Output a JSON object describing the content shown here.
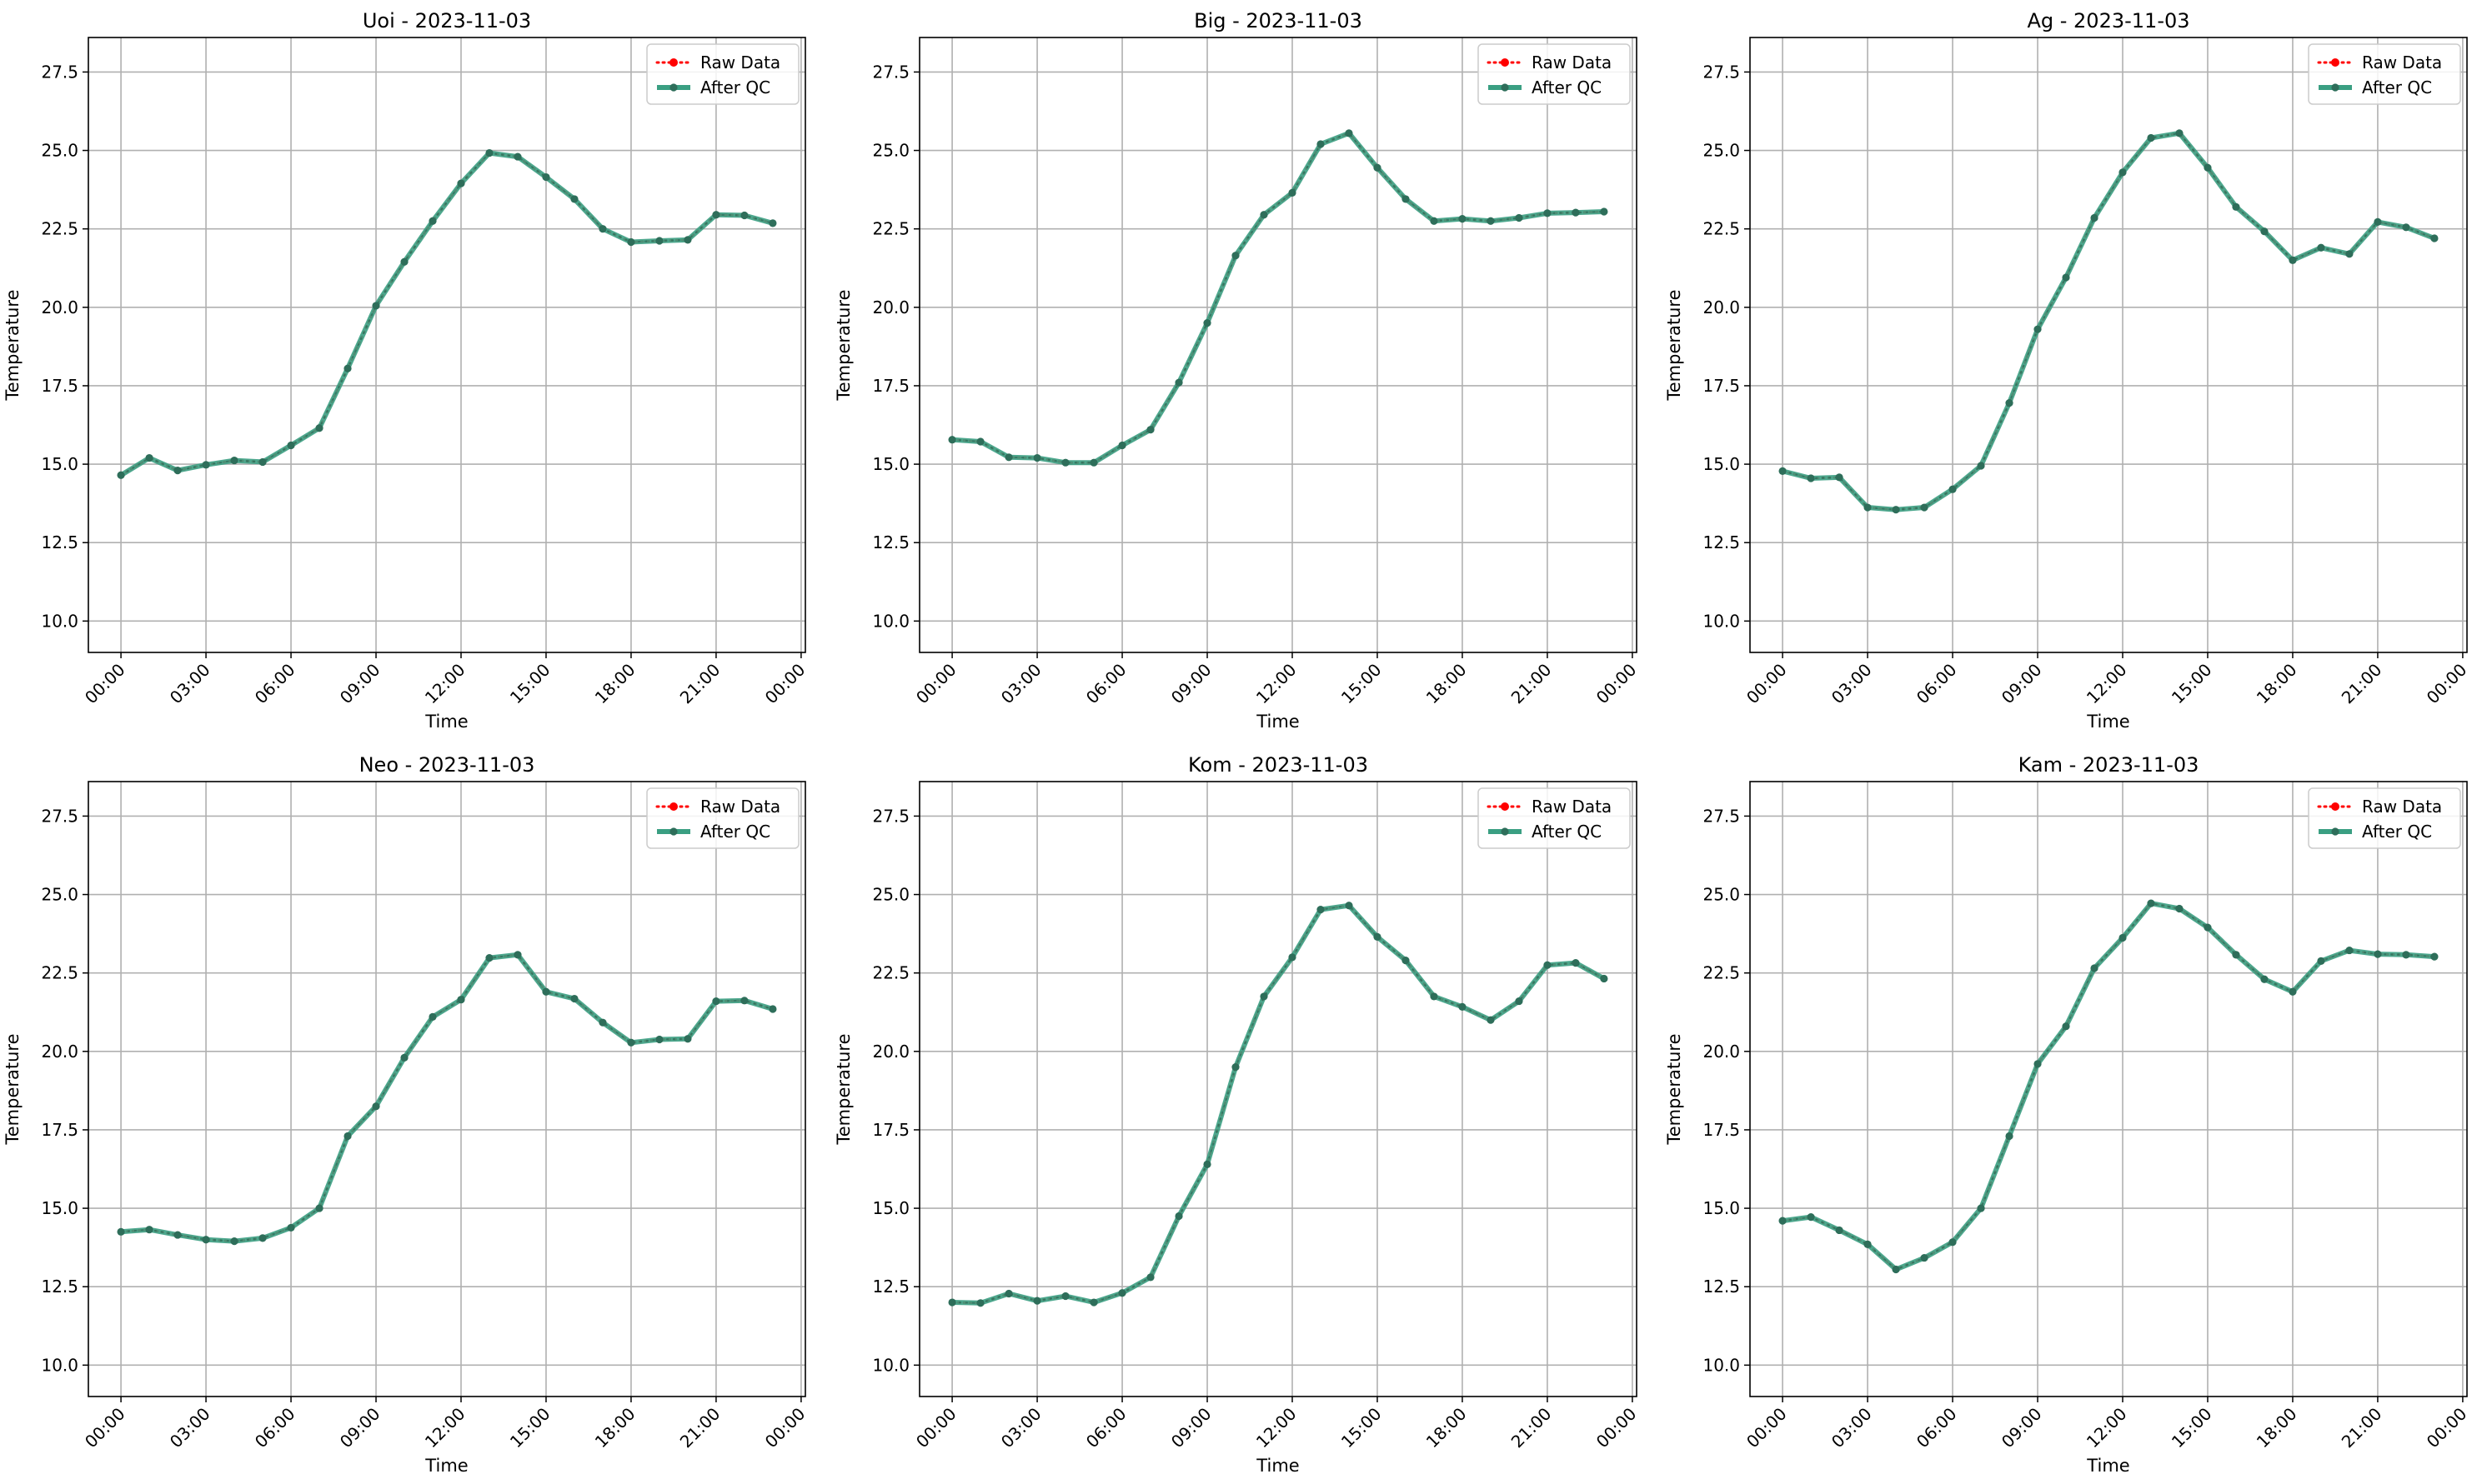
{
  "chart_data": [
    {
      "type": "line",
      "title": "Uoi - 2023-11-03",
      "xlabel": "Time",
      "ylabel": "Temperature",
      "ylim": [
        9.0,
        28.6
      ],
      "yticks": [
        "10.0",
        "12.5",
        "15.0",
        "17.5",
        "20.0",
        "22.5",
        "25.0",
        "27.5"
      ],
      "xticks": [
        "00:00",
        "03:00",
        "06:00",
        "09:00",
        "12:00",
        "15:00",
        "18:00",
        "21:00",
        "00:00"
      ],
      "grid": true,
      "legend_position": "top-right",
      "legend": [
        "Raw Data",
        "After QC"
      ],
      "x_hours": [
        0,
        1,
        2,
        3,
        4,
        5,
        6,
        7,
        8,
        9,
        10,
        11,
        12,
        13,
        14,
        15,
        16,
        17,
        18,
        19,
        20,
        21,
        22,
        23
      ],
      "series": [
        {
          "name": "Raw Data",
          "values": [
            14.65,
            15.2,
            14.8,
            14.98,
            15.12,
            15.07,
            15.6,
            16.15,
            18.05,
            20.05,
            21.45,
            22.75,
            23.95,
            24.92,
            24.8,
            24.15,
            23.45,
            22.5,
            22.08,
            22.12,
            22.15,
            22.95,
            22.93,
            22.68
          ]
        },
        {
          "name": "After QC",
          "values": [
            14.65,
            15.2,
            14.8,
            14.98,
            15.12,
            15.07,
            15.6,
            16.15,
            18.05,
            20.05,
            21.45,
            22.75,
            23.95,
            24.92,
            24.8,
            24.15,
            23.45,
            22.5,
            22.08,
            22.12,
            22.15,
            22.95,
            22.93,
            22.68
          ]
        }
      ]
    },
    {
      "type": "line",
      "title": "Big - 2023-11-03",
      "xlabel": "Time",
      "ylabel": "Temperature",
      "ylim": [
        9.0,
        28.6
      ],
      "yticks": [
        "10.0",
        "12.5",
        "15.0",
        "17.5",
        "20.0",
        "22.5",
        "25.0",
        "27.5"
      ],
      "xticks": [
        "00:00",
        "03:00",
        "06:00",
        "09:00",
        "12:00",
        "15:00",
        "18:00",
        "21:00",
        "00:00"
      ],
      "grid": true,
      "legend_position": "top-right",
      "legend": [
        "Raw Data",
        "After QC"
      ],
      "x_hours": [
        0,
        1,
        2,
        3,
        4,
        5,
        6,
        7,
        8,
        9,
        10,
        11,
        12,
        13,
        14,
        15,
        16,
        17,
        18,
        19,
        20,
        21,
        22,
        23
      ],
      "series": [
        {
          "name": "Raw Data",
          "values": [
            15.78,
            15.72,
            15.22,
            15.2,
            15.05,
            15.05,
            15.6,
            16.1,
            17.6,
            19.5,
            21.65,
            22.95,
            23.65,
            25.2,
            25.55,
            24.45,
            23.45,
            22.75,
            22.82,
            22.75,
            22.85,
            23.0,
            23.02,
            23.05
          ]
        },
        {
          "name": "After QC",
          "values": [
            15.78,
            15.72,
            15.22,
            15.2,
            15.05,
            15.05,
            15.6,
            16.1,
            17.6,
            19.5,
            21.65,
            22.95,
            23.65,
            25.2,
            25.55,
            24.45,
            23.45,
            22.75,
            22.82,
            22.75,
            22.85,
            23.0,
            23.02,
            23.05
          ]
        }
      ]
    },
    {
      "type": "line",
      "title": "Ag - 2023-11-03",
      "xlabel": "Time",
      "ylabel": "Temperature",
      "ylim": [
        9.0,
        28.6
      ],
      "yticks": [
        "10.0",
        "12.5",
        "15.0",
        "17.5",
        "20.0",
        "22.5",
        "25.0",
        "27.5"
      ],
      "xticks": [
        "00:00",
        "03:00",
        "06:00",
        "09:00",
        "12:00",
        "15:00",
        "18:00",
        "21:00",
        "00:00"
      ],
      "grid": true,
      "legend_position": "top-right",
      "legend": [
        "Raw Data",
        "After QC"
      ],
      "x_hours": [
        0,
        1,
        2,
        3,
        4,
        5,
        6,
        7,
        8,
        9,
        10,
        11,
        12,
        13,
        14,
        15,
        16,
        17,
        18,
        19,
        20,
        21,
        22,
        23
      ],
      "series": [
        {
          "name": "Raw Data",
          "values": [
            14.78,
            14.55,
            14.58,
            13.62,
            13.55,
            13.62,
            14.2,
            14.95,
            16.95,
            19.3,
            20.95,
            22.85,
            24.3,
            25.4,
            25.55,
            24.45,
            23.2,
            22.42,
            21.5,
            21.9,
            21.7,
            22.72,
            22.55,
            22.2
          ]
        },
        {
          "name": "After QC",
          "values": [
            14.78,
            14.55,
            14.58,
            13.62,
            13.55,
            13.62,
            14.2,
            14.95,
            16.95,
            19.3,
            20.95,
            22.85,
            24.3,
            25.4,
            25.55,
            24.45,
            23.2,
            22.42,
            21.5,
            21.9,
            21.7,
            22.72,
            22.55,
            22.2
          ]
        }
      ]
    },
    {
      "type": "line",
      "title": "Neo - 2023-11-03",
      "xlabel": "Time",
      "ylabel": "Temperature",
      "ylim": [
        9.0,
        28.6
      ],
      "yticks": [
        "10.0",
        "12.5",
        "15.0",
        "17.5",
        "20.0",
        "22.5",
        "25.0",
        "27.5"
      ],
      "xticks": [
        "00:00",
        "03:00",
        "06:00",
        "09:00",
        "12:00",
        "15:00",
        "18:00",
        "21:00",
        "00:00"
      ],
      "grid": true,
      "legend_position": "top-right",
      "legend": [
        "Raw Data",
        "After QC"
      ],
      "x_hours": [
        0,
        1,
        2,
        3,
        4,
        5,
        6,
        7,
        8,
        9,
        10,
        11,
        12,
        13,
        14,
        15,
        16,
        17,
        18,
        19,
        20,
        21,
        22,
        23
      ],
      "series": [
        {
          "name": "Raw Data",
          "values": [
            14.25,
            14.32,
            14.15,
            14.0,
            13.95,
            14.05,
            14.38,
            15.0,
            17.3,
            18.25,
            19.8,
            21.1,
            21.65,
            22.98,
            23.08,
            21.9,
            21.68,
            20.92,
            20.28,
            20.38,
            20.4,
            21.6,
            21.62,
            21.35
          ]
        },
        {
          "name": "After QC",
          "values": [
            14.25,
            14.32,
            14.15,
            14.0,
            13.95,
            14.05,
            14.38,
            15.0,
            17.3,
            18.25,
            19.8,
            21.1,
            21.65,
            22.98,
            23.08,
            21.9,
            21.68,
            20.92,
            20.28,
            20.38,
            20.4,
            21.6,
            21.62,
            21.35
          ]
        }
      ]
    },
    {
      "type": "line",
      "title": "Kom - 2023-11-03",
      "xlabel": "Time",
      "ylabel": "Temperature",
      "ylim": [
        9.0,
        28.6
      ],
      "yticks": [
        "10.0",
        "12.5",
        "15.0",
        "17.5",
        "20.0",
        "22.5",
        "25.0",
        "27.5"
      ],
      "xticks": [
        "00:00",
        "03:00",
        "06:00",
        "09:00",
        "12:00",
        "15:00",
        "18:00",
        "21:00",
        "00:00"
      ],
      "grid": true,
      "legend_position": "top-right",
      "legend": [
        "Raw Data",
        "After QC"
      ],
      "x_hours": [
        0,
        1,
        2,
        3,
        4,
        5,
        6,
        7,
        8,
        9,
        10,
        11,
        12,
        13,
        14,
        15,
        16,
        17,
        18,
        19,
        20,
        21,
        22,
        23
      ],
      "series": [
        {
          "name": "Raw Data",
          "values": [
            12.0,
            11.98,
            12.28,
            12.05,
            12.2,
            12.0,
            12.3,
            12.8,
            14.75,
            16.4,
            19.5,
            21.75,
            23.0,
            24.52,
            24.65,
            23.65,
            22.9,
            21.75,
            21.42,
            21.0,
            21.6,
            22.75,
            22.82,
            22.32
          ]
        },
        {
          "name": "After QC",
          "values": [
            12.0,
            11.98,
            12.28,
            12.05,
            12.2,
            12.0,
            12.3,
            12.8,
            14.75,
            16.4,
            19.5,
            21.75,
            23.0,
            24.52,
            24.65,
            23.65,
            22.9,
            21.75,
            21.42,
            21.0,
            21.6,
            22.75,
            22.82,
            22.32
          ]
        }
      ]
    },
    {
      "type": "line",
      "title": "Kam - 2023-11-03",
      "xlabel": "Time",
      "ylabel": "Temperature",
      "ylim": [
        9.0,
        28.6
      ],
      "yticks": [
        "10.0",
        "12.5",
        "15.0",
        "17.5",
        "20.0",
        "22.5",
        "25.0",
        "27.5"
      ],
      "xticks": [
        "00:00",
        "03:00",
        "06:00",
        "09:00",
        "12:00",
        "15:00",
        "18:00",
        "21:00",
        "00:00"
      ],
      "grid": true,
      "legend_position": "top-right",
      "legend": [
        "Raw Data",
        "After QC"
      ],
      "x_hours": [
        0,
        1,
        2,
        3,
        4,
        5,
        6,
        7,
        8,
        9,
        10,
        11,
        12,
        13,
        14,
        15,
        16,
        17,
        18,
        19,
        20,
        21,
        22,
        23
      ],
      "series": [
        {
          "name": "Raw Data",
          "values": [
            14.6,
            14.72,
            14.3,
            13.85,
            13.05,
            13.42,
            13.92,
            15.0,
            17.3,
            19.6,
            20.8,
            22.65,
            23.62,
            24.72,
            24.55,
            23.95,
            23.08,
            22.3,
            21.9,
            22.88,
            23.22,
            23.1,
            23.08,
            23.02
          ]
        },
        {
          "name": "After QC",
          "values": [
            14.6,
            14.72,
            14.3,
            13.85,
            13.05,
            13.42,
            13.92,
            15.0,
            17.3,
            19.6,
            20.8,
            22.65,
            23.62,
            24.72,
            24.55,
            23.95,
            23.08,
            22.3,
            21.9,
            22.88,
            23.22,
            23.1,
            23.08,
            23.02
          ]
        }
      ]
    }
  ],
  "colors": {
    "raw_data": "#ff0000",
    "after_qc": "#3a9f82",
    "marker": "#2e6e5a",
    "grid": "#b0b0b0"
  }
}
